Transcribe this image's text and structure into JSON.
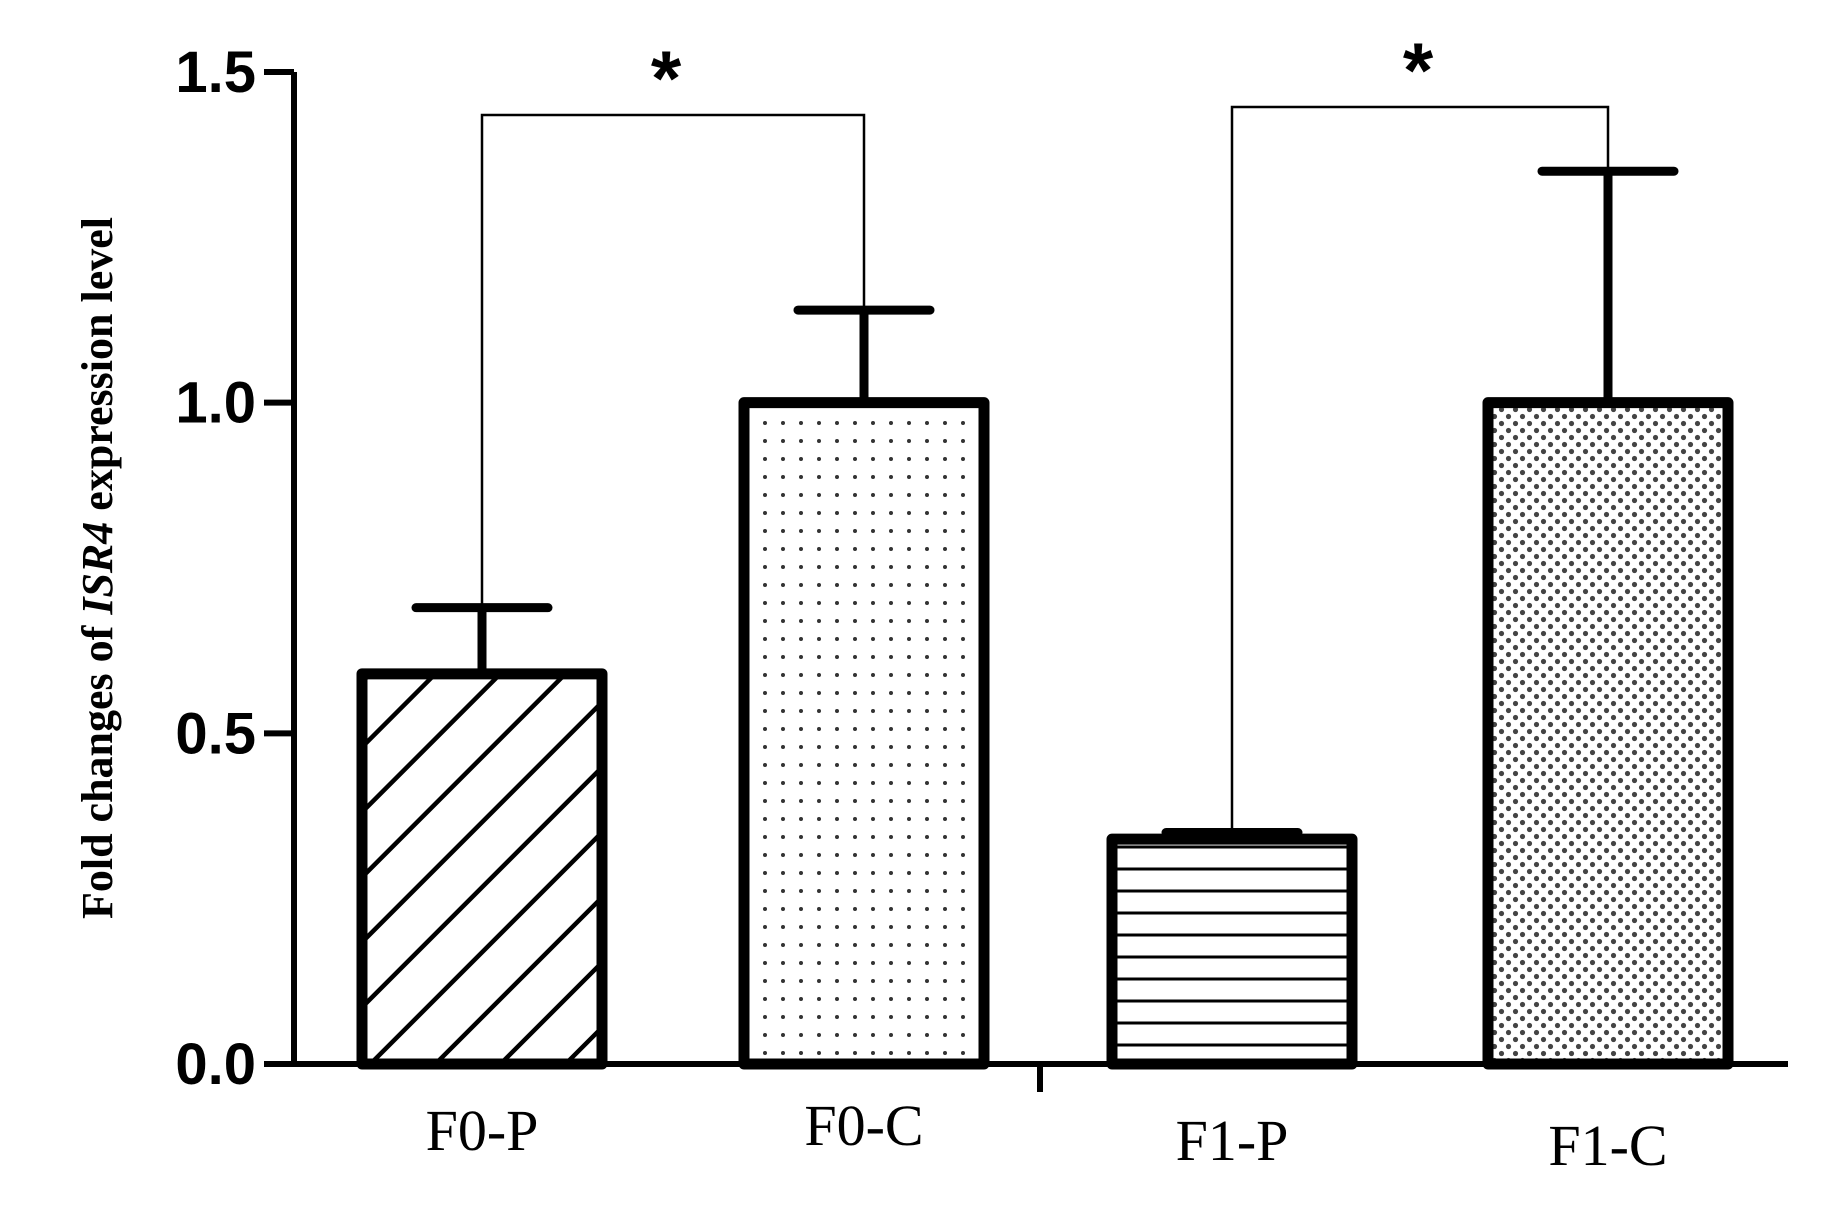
{
  "chart_data": {
    "type": "bar",
    "title": "",
    "ylabel": {
      "before": "Fold changes of ",
      "gene": "ISR4",
      "after": " expression level"
    },
    "xlabel": "",
    "ylim": [
      0,
      1.5
    ],
    "yticks": [
      "0.0",
      "0.5",
      "1.0",
      "1.5"
    ],
    "categories": [
      "F0-P",
      "F0-C",
      "F1-P",
      "F1-C"
    ],
    "values": [
      0.59,
      1.0,
      0.34,
      1.0
    ],
    "errors": [
      0.1,
      0.14,
      0.01,
      0.35
    ],
    "patterns": [
      "diagonal-hatch",
      "fine-dots",
      "horizontal-lines",
      "dense-dots"
    ],
    "significance": [
      {
        "from": 0,
        "to": 1,
        "label": "*"
      },
      {
        "from": 2,
        "to": 3,
        "label": "*"
      }
    ],
    "grid": false,
    "legend": "none"
  }
}
